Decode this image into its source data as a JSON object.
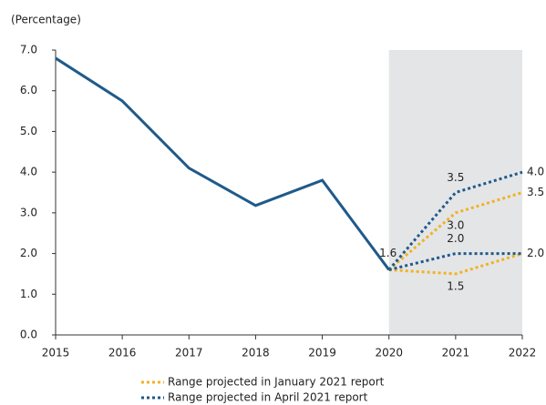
{
  "chart_data": {
    "type": "line",
    "y_label": "(Percentage)",
    "categories": [
      "2015",
      "2016",
      "2017",
      "2018",
      "2019",
      "2020",
      "2021",
      "2022"
    ],
    "ylim": [
      0,
      7
    ],
    "yticks": [
      {
        "value": 0,
        "label": "0.0"
      },
      {
        "value": 1,
        "label": "1.0"
      },
      {
        "value": 2,
        "label": "2.0"
      },
      {
        "value": 3,
        "label": "3.0"
      },
      {
        "value": 4,
        "label": "4.0"
      },
      {
        "value": 5,
        "label": "5.0"
      },
      {
        "value": 6,
        "label": "6.0"
      },
      {
        "value": 7,
        "label": "7.0"
      }
    ],
    "series": [
      {
        "color": "#1f5a8a",
        "style": "solid",
        "values": [
          6.8,
          5.75,
          4.1,
          3.18,
          3.8,
          1.6,
          null,
          null
        ],
        "value_labels": [
          null,
          null,
          null,
          null,
          null,
          "1.6",
          null,
          null
        ]
      }
    ],
    "ranges": [
      {
        "name": "Range projected in January 2021 report",
        "color": "#f0b323",
        "upper": [
          null,
          null,
          null,
          null,
          null,
          1.6,
          3.0,
          3.5
        ],
        "upper_labels": [
          null,
          null,
          null,
          null,
          null,
          null,
          "3.0",
          "3.5"
        ],
        "lower": [
          null,
          null,
          null,
          null,
          null,
          1.6,
          1.5,
          2.0
        ],
        "lower_labels": [
          null,
          null,
          null,
          null,
          null,
          null,
          "1.5",
          null
        ]
      },
      {
        "name": "Range projected in April 2021 report",
        "color": "#1f5a8a",
        "upper": [
          null,
          null,
          null,
          null,
          null,
          1.6,
          3.5,
          4.0
        ],
        "upper_labels": [
          null,
          null,
          null,
          null,
          null,
          null,
          "3.5",
          "4.0"
        ],
        "lower": [
          null,
          null,
          null,
          null,
          null,
          1.6,
          2.0,
          2.0
        ],
        "lower_labels": [
          null,
          null,
          null,
          null,
          null,
          null,
          "2.0",
          "2.0"
        ]
      }
    ]
  }
}
